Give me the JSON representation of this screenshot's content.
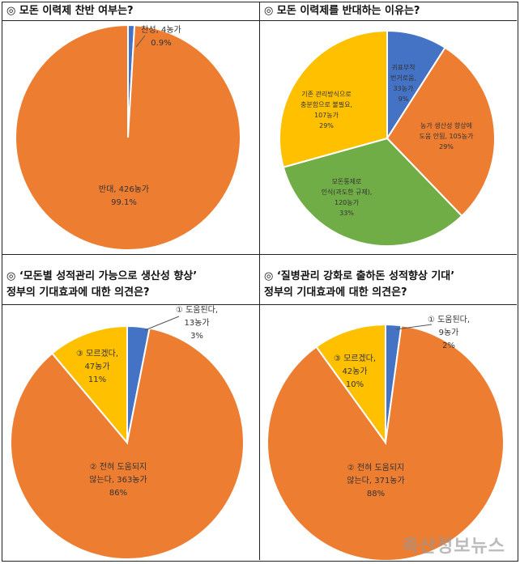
{
  "colors": {
    "orange": "#ED7D31",
    "blue": "#4472C4",
    "yellow": "#FFC000",
    "green": "#70AD47"
  },
  "watermark": "축산정보뉴스",
  "chart_data": [
    {
      "type": "pie",
      "title": "◎ 모돈 이력제 찬반 여부는?",
      "subtitle": "",
      "slices": [
        {
          "label_lines": [
            "찬성, 4농가",
            "0.9%"
          ],
          "value": 4,
          "percent": 0.9,
          "color": "#4472C4"
        },
        {
          "label_lines": [
            "반대, 426농가",
            "99.1%"
          ],
          "value": 426,
          "percent": 99.1,
          "color": "#ED7D31"
        }
      ]
    },
    {
      "type": "pie",
      "title": "◎ 모돈 이력제를 반대하는 이유는?",
      "subtitle": "",
      "slices": [
        {
          "label_lines": [
            "귀표부착",
            "번거로움,",
            "33농가",
            "9%"
          ],
          "value": 33,
          "percent": 9,
          "color": "#4472C4"
        },
        {
          "label_lines": [
            "농가 생산성 향상에",
            "도움 안됨, 105농가",
            "29%"
          ],
          "value": 105,
          "percent": 29,
          "color": "#ED7D31"
        },
        {
          "label_lines": [
            "모돈통제로",
            "인식(과도한 규제),",
            "120농가",
            "33%"
          ],
          "value": 120,
          "percent": 33,
          "color": "#70AD47"
        },
        {
          "label_lines": [
            "기존 관리방식으로",
            "충분함으로 불필요,",
            "107농가",
            "29%"
          ],
          "value": 107,
          "percent": 29,
          "color": "#FFC000"
        }
      ]
    },
    {
      "type": "pie",
      "title": "◎ ‘모돈별 성적관리 가능으로 생산성 향상’",
      "subtitle": "정부의 기대효과에 대한 의견은?",
      "slices": [
        {
          "label_lines": [
            "① 도움된다,",
            "13농가",
            "3%"
          ],
          "value": 13,
          "percent": 3,
          "color": "#4472C4"
        },
        {
          "label_lines": [
            "② 전혀 도움되지",
            "않는다, 363농가",
            "86%"
          ],
          "value": 363,
          "percent": 86,
          "color": "#ED7D31"
        },
        {
          "label_lines": [
            "③ 모르겠다,",
            "47농가",
            "11%"
          ],
          "value": 47,
          "percent": 11,
          "color": "#FFC000"
        }
      ]
    },
    {
      "type": "pie",
      "title": "◎ ‘질병관리 강화로 출하돈 성적향상 기대’",
      "subtitle": "정부의 기대효과에 대한 의견은?",
      "slices": [
        {
          "label_lines": [
            "① 도움된다,",
            "9농가",
            "2%"
          ],
          "value": 9,
          "percent": 2,
          "color": "#4472C4"
        },
        {
          "label_lines": [
            "② 전혀 도움되지",
            "않는다, 371농가",
            "88%"
          ],
          "value": 371,
          "percent": 88,
          "color": "#ED7D31"
        },
        {
          "label_lines": [
            "③ 모르겠다,",
            "42농가",
            "10%"
          ],
          "value": 42,
          "percent": 10,
          "color": "#FFC000"
        }
      ]
    }
  ]
}
